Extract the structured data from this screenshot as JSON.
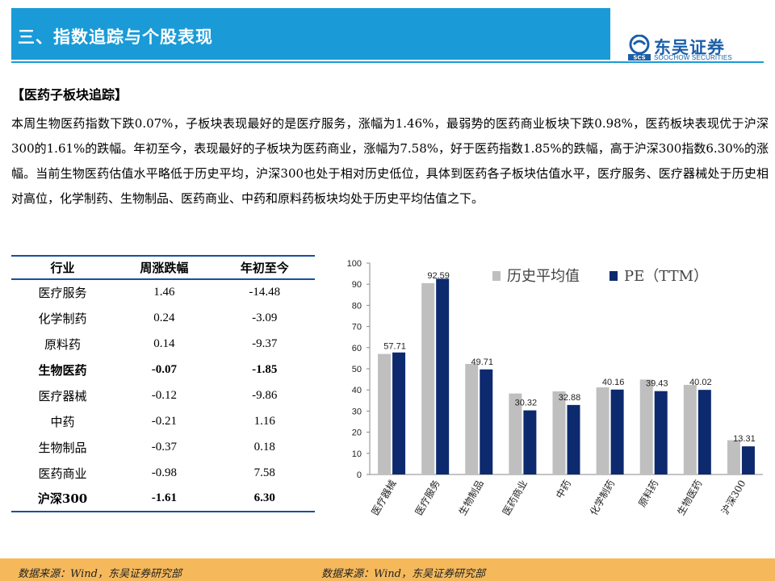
{
  "header": {
    "title": "三、指数追踪与个股表现"
  },
  "logo": {
    "name_cn": "东吴证券",
    "name_en": "SOOCHOW SECURITIES",
    "mark": "SCS"
  },
  "section": {
    "heading": "【医药子板块追踪】",
    "summary": "本周生物医药指数下跌0.07%，子板块表现最好的是医疗服务，涨幅为1.46%，最弱势的医药商业板块下跌0.98%，医药板块表现优于沪深300的1.61%的跌幅。年初至今，表现最好的子板块为医药商业，涨幅为7.58%，好于医药指数1.85%的跌幅，高于沪深300指数6.30%的涨幅。当前生物医药估值水平略低于历史平均，沪深300也处于相对历史低位，具体到医药各子板块估值水平，医疗服务、医疗器械处于历史相对高位，化学制药、生物制品、医药商业、中药和原料药板块均处于历史平均估值之下。"
  },
  "table": {
    "headers": [
      "行业",
      "周涨跌幅",
      "年初至今"
    ],
    "rows": [
      {
        "name": "医疗服务",
        "weekly": "1.46",
        "ytd": "-14.48",
        "bold": false
      },
      {
        "name": "化学制药",
        "weekly": "0.24",
        "ytd": "-3.09",
        "bold": false
      },
      {
        "name": "原料药",
        "weekly": "0.14",
        "ytd": "-9.37",
        "bold": false
      },
      {
        "name": "生物医药",
        "weekly": "-0.07",
        "ytd": "-1.85",
        "bold": true
      },
      {
        "name": "医疗器械",
        "weekly": "-0.12",
        "ytd": "-9.86",
        "bold": false
      },
      {
        "name": "中药",
        "weekly": "-0.21",
        "ytd": "1.16",
        "bold": false
      },
      {
        "name": "生物制品",
        "weekly": "-0.37",
        "ytd": "0.18",
        "bold": false
      },
      {
        "name": "医药商业",
        "weekly": "-0.98",
        "ytd": "7.58",
        "bold": false
      },
      {
        "name": "沪深300",
        "weekly": "-1.61",
        "ytd": "6.30",
        "bold": true
      }
    ]
  },
  "chart_data": {
    "type": "bar",
    "categories": [
      "医疗器械",
      "医疗服务",
      "生物制品",
      "医药商业",
      "中药",
      "化学制药",
      "原料药",
      "生物医药",
      "沪深300"
    ],
    "series": [
      {
        "name": "历史平均值",
        "values": [
          57.0,
          90.5,
          52.3,
          38.3,
          39.3,
          41.2,
          44.9,
          42.4,
          16.2
        ],
        "color": "#bfbfbf"
      },
      {
        "name": "PE（TTM）",
        "values": [
          57.71,
          92.59,
          49.71,
          30.32,
          32.88,
          40.16,
          39.43,
          40.02,
          13.31
        ],
        "color": "#0d2a6e"
      }
    ],
    "labels": [
      "57.71",
      "92.59",
      "49.71",
      "30.32",
      "32.88",
      "40.16",
      "39.43",
      "40.02",
      "13.31"
    ],
    "ylim": [
      0,
      100
    ],
    "yticks": [
      "0",
      "10",
      "20",
      "30",
      "40",
      "50",
      "60",
      "70",
      "80",
      "90",
      "100"
    ],
    "legend_position": "top-right",
    "grid": false
  },
  "footer": {
    "source_left": "数据来源：Wind，东吴证券研究部",
    "source_right": "数据来源：Wind，东吴证券研究部"
  }
}
